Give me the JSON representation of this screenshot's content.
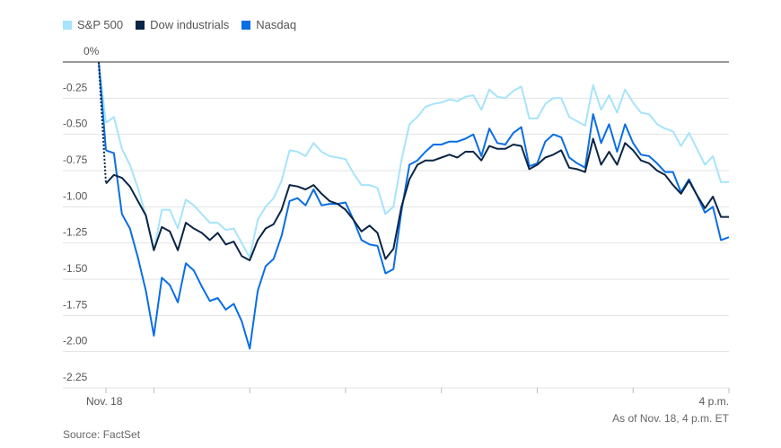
{
  "legend": [
    {
      "name": "S&P 500",
      "color": "#a6e4fb"
    },
    {
      "name": "Dow industrials",
      "color": "#0b2545"
    },
    {
      "name": "Nasdaq",
      "color": "#0a6ee6"
    }
  ],
  "footer": {
    "as_of": "As of Nov. 18, 4 p.m. ET",
    "source": "Source: FactSet"
  },
  "chart_data": {
    "type": "line",
    "title": "",
    "xlabel": "",
    "ylabel": "",
    "ylim": [
      -2.25,
      0
    ],
    "y_ticks": [
      0,
      -0.25,
      -0.5,
      -0.75,
      -1.0,
      -1.25,
      -1.5,
      -1.75,
      -2.0,
      -2.25
    ],
    "y_tick_labels": [
      "0%",
      "-0.25",
      "-0.50",
      "-0.75",
      "-1.00",
      "-1.25",
      "-1.50",
      "-1.75",
      "-2.00",
      "-2.25"
    ],
    "x_ticks": [
      "9:30",
      "10:00",
      "11:00",
      "12:00",
      "13:00",
      "14:00",
      "15:00",
      "16:00"
    ],
    "x_tick_labels": [
      "Nov. 18",
      "",
      "",
      "",
      "",
      "",
      "",
      "4 p.m."
    ],
    "grid": true,
    "legend_position": "top-left",
    "prior_close_value": 0,
    "x": [
      "9:30",
      "9:35",
      "9:40",
      "9:45",
      "9:50",
      "9:55",
      "10:00",
      "10:05",
      "10:10",
      "10:15",
      "10:20",
      "10:25",
      "10:30",
      "10:35",
      "10:40",
      "10:45",
      "10:50",
      "10:55",
      "11:00",
      "11:05",
      "11:10",
      "11:15",
      "11:20",
      "11:25",
      "11:30",
      "11:35",
      "11:40",
      "11:45",
      "11:50",
      "11:55",
      "12:00",
      "12:05",
      "12:10",
      "12:15",
      "12:20",
      "12:25",
      "12:30",
      "12:35",
      "12:40",
      "12:45",
      "12:50",
      "12:55",
      "13:00",
      "13:05",
      "13:10",
      "13:15",
      "13:20",
      "13:25",
      "13:30",
      "13:35",
      "13:40",
      "13:45",
      "13:50",
      "13:55",
      "14:00",
      "14:05",
      "14:10",
      "14:15",
      "14:20",
      "14:25",
      "14:30",
      "14:35",
      "14:40",
      "14:45",
      "14:50",
      "14:55",
      "15:00",
      "15:05",
      "15:10",
      "15:15",
      "15:20",
      "15:25",
      "15:30",
      "15:35",
      "15:40",
      "15:45",
      "15:50",
      "15:55",
      "16:00"
    ],
    "series": [
      {
        "name": "S&P 500",
        "color": "#a6e4fb",
        "values": [
          -0.42,
          -0.38,
          -0.6,
          -0.71,
          -0.87,
          -1.06,
          -1.3,
          -1.02,
          -1.02,
          -1.15,
          -0.95,
          -0.99,
          -1.05,
          -1.11,
          -1.11,
          -1.16,
          -1.15,
          -1.25,
          -1.35,
          -1.09,
          -1.0,
          -0.94,
          -0.82,
          -0.61,
          -0.62,
          -0.65,
          -0.56,
          -0.62,
          -0.65,
          -0.66,
          -0.67,
          -0.77,
          -0.85,
          -0.85,
          -0.87,
          -1.05,
          -1.0,
          -0.68,
          -0.43,
          -0.38,
          -0.31,
          -0.29,
          -0.28,
          -0.26,
          -0.27,
          -0.24,
          -0.23,
          -0.33,
          -0.19,
          -0.24,
          -0.25,
          -0.2,
          -0.17,
          -0.39,
          -0.39,
          -0.29,
          -0.25,
          -0.25,
          -0.38,
          -0.41,
          -0.44,
          -0.16,
          -0.33,
          -0.23,
          -0.35,
          -0.19,
          -0.28,
          -0.35,
          -0.36,
          -0.43,
          -0.46,
          -0.48,
          -0.58,
          -0.49,
          -0.6,
          -0.71,
          -0.65,
          -0.83,
          -0.83
        ]
      },
      {
        "name": "Dow industrials",
        "color": "#0b2545",
        "values": [
          -0.84,
          -0.78,
          -0.8,
          -0.86,
          -0.96,
          -1.06,
          -1.3,
          -1.14,
          -1.17,
          -1.3,
          -1.11,
          -1.15,
          -1.18,
          -1.23,
          -1.18,
          -1.26,
          -1.24,
          -1.34,
          -1.37,
          -1.23,
          -1.15,
          -1.12,
          -1.02,
          -0.85,
          -0.86,
          -0.88,
          -0.85,
          -0.91,
          -0.96,
          -0.98,
          -1.02,
          -1.09,
          -1.17,
          -1.13,
          -1.18,
          -1.36,
          -1.29,
          -1.0,
          -0.81,
          -0.71,
          -0.68,
          -0.68,
          -0.66,
          -0.64,
          -0.66,
          -0.62,
          -0.62,
          -0.68,
          -0.58,
          -0.6,
          -0.6,
          -0.57,
          -0.58,
          -0.74,
          -0.71,
          -0.66,
          -0.64,
          -0.61,
          -0.73,
          -0.74,
          -0.76,
          -0.53,
          -0.71,
          -0.62,
          -0.71,
          -0.56,
          -0.61,
          -0.68,
          -0.7,
          -0.75,
          -0.78,
          -0.85,
          -0.91,
          -0.82,
          -0.92,
          -1.01,
          -0.93,
          -1.07,
          -1.07
        ]
      },
      {
        "name": "Nasdaq",
        "color": "#0a6ee6",
        "values": [
          -0.61,
          -0.63,
          -1.05,
          -1.15,
          -1.35,
          -1.58,
          -1.89,
          -1.49,
          -1.54,
          -1.66,
          -1.39,
          -1.44,
          -1.55,
          -1.65,
          -1.63,
          -1.71,
          -1.67,
          -1.79,
          -1.98,
          -1.58,
          -1.41,
          -1.36,
          -1.2,
          -0.96,
          -0.94,
          -0.99,
          -0.88,
          -0.99,
          -0.98,
          -0.98,
          -0.97,
          -1.09,
          -1.23,
          -1.26,
          -1.27,
          -1.46,
          -1.43,
          -1.03,
          -0.71,
          -0.68,
          -0.62,
          -0.57,
          -0.57,
          -0.55,
          -0.55,
          -0.53,
          -0.5,
          -0.65,
          -0.46,
          -0.56,
          -0.57,
          -0.49,
          -0.45,
          -0.72,
          -0.7,
          -0.55,
          -0.5,
          -0.52,
          -0.66,
          -0.7,
          -0.73,
          -0.36,
          -0.56,
          -0.43,
          -0.62,
          -0.43,
          -0.56,
          -0.64,
          -0.65,
          -0.7,
          -0.76,
          -0.76,
          -0.9,
          -0.81,
          -0.92,
          -1.04,
          -1.0,
          -1.23,
          -1.21
        ]
      }
    ]
  }
}
